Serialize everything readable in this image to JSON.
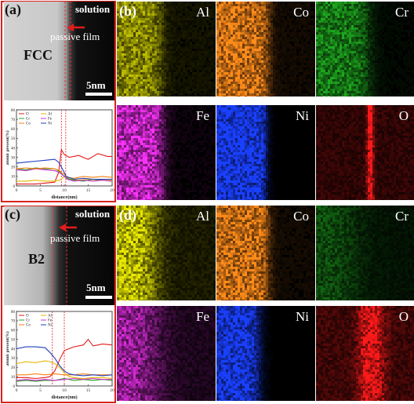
{
  "panel_a": {
    "label": "(a)",
    "solution": "solution",
    "passive_film": "passive film",
    "phase": "FCC",
    "scale_bar": "5nm",
    "chart_data": {
      "type": "line",
      "xlabel": "distance(nm)",
      "ylabel": "atomic precent(%)",
      "xlim": [
        0,
        20
      ],
      "ylim": [
        0,
        80
      ],
      "xticks": [
        0,
        5,
        10,
        15,
        20
      ],
      "yticks": [
        0,
        10,
        20,
        30,
        40,
        50,
        60,
        70,
        80
      ],
      "legend_position": "top-left",
      "markers": [
        9.4,
        10.3
      ],
      "series": [
        {
          "name": "O",
          "color": "#e41a1c",
          "x": [
            0,
            2,
            4,
            6,
            8,
            8.8,
            9.4,
            10,
            11,
            13,
            15,
            17,
            19,
            20
          ],
          "values": [
            2,
            2,
            2,
            3,
            4,
            14,
            38,
            33,
            30,
            32,
            28,
            34,
            31,
            31
          ]
        },
        {
          "name": "Al",
          "color": "#e6b800",
          "x": [
            0,
            2,
            4,
            6,
            8,
            9,
            9.6,
            10.2,
            11,
            13,
            15,
            17,
            19,
            20
          ],
          "values": [
            5,
            5,
            6,
            5,
            5,
            6,
            8,
            11,
            7,
            6,
            7,
            6,
            6,
            6
          ]
        },
        {
          "name": "Cr",
          "color": "#2ca02c",
          "x": [
            0,
            2,
            4,
            6,
            8,
            9,
            10,
            10.6,
            12,
            14,
            16,
            18,
            20
          ],
          "values": [
            18,
            17,
            19,
            18,
            18,
            15,
            10,
            8,
            6,
            5,
            7,
            6,
            5
          ]
        },
        {
          "name": "Fe",
          "color": "#cc33cc",
          "x": [
            0,
            2,
            4,
            6,
            8,
            9,
            10,
            10.6,
            12,
            14,
            16,
            18,
            20
          ],
          "values": [
            17,
            16,
            18,
            17,
            16,
            14,
            10,
            7,
            5,
            6,
            5,
            6,
            5
          ]
        },
        {
          "name": "Co",
          "color": "#ff7f0e",
          "x": [
            0,
            2,
            4,
            6,
            8,
            9,
            10,
            10.6,
            12,
            14,
            16,
            18,
            20
          ],
          "values": [
            18,
            19,
            18,
            19,
            18,
            16,
            12,
            9,
            8,
            10,
            9,
            10,
            9
          ]
        },
        {
          "name": "Ni",
          "color": "#1f3fbf",
          "x": [
            0,
            2,
            4,
            6,
            8,
            8.8,
            9.6,
            10.4,
            12,
            14,
            16,
            18,
            20
          ],
          "values": [
            24,
            25,
            26,
            27,
            28,
            25,
            18,
            10,
            7,
            8,
            7,
            7,
            7
          ]
        }
      ]
    }
  },
  "panel_c": {
    "label": "(c)",
    "solution": "solution",
    "passive_film": "passive film",
    "phase": "B2",
    "scale_bar": "5nm",
    "chart_data": {
      "type": "line",
      "xlabel": "distance(nm)",
      "ylabel": "atomic precent(%)",
      "xlim": [
        0,
        20
      ],
      "ylim": [
        0,
        80
      ],
      "xticks": [
        0,
        5,
        10,
        15,
        20
      ],
      "yticks": [
        0,
        10,
        20,
        30,
        40,
        50,
        60,
        70,
        80
      ],
      "legend_position": "top-left",
      "markers": [
        7.5,
        10.0
      ],
      "series": [
        {
          "name": "O",
          "color": "#e41a1c",
          "x": [
            0,
            2,
            4,
            6,
            7,
            8,
            9,
            10,
            11,
            12,
            14,
            15,
            16,
            18,
            20
          ],
          "values": [
            9,
            9,
            8,
            9,
            10,
            16,
            28,
            38,
            40,
            42,
            44,
            50,
            43,
            45,
            44
          ]
        },
        {
          "name": "Al",
          "color": "#e6b800",
          "x": [
            0,
            2,
            4,
            6,
            7,
            8,
            9,
            10,
            11,
            12,
            14,
            16,
            18,
            20
          ],
          "values": [
            24,
            26,
            25,
            27,
            26,
            24,
            20,
            14,
            10,
            9,
            8,
            9,
            9,
            8
          ]
        },
        {
          "name": "Cr",
          "color": "#2ca02c",
          "x": [
            0,
            2,
            4,
            6,
            8,
            10,
            12,
            14,
            16,
            18,
            20
          ],
          "values": [
            5,
            6,
            5,
            6,
            6,
            8,
            6,
            7,
            6,
            7,
            6
          ]
        },
        {
          "name": "Fe",
          "color": "#cc33cc",
          "x": [
            0,
            2,
            4,
            6,
            8,
            10,
            12,
            14,
            16,
            18,
            20
          ],
          "values": [
            6,
            7,
            6,
            7,
            6,
            7,
            8,
            7,
            8,
            7,
            7
          ]
        },
        {
          "name": "Co",
          "color": "#ff7f0e",
          "x": [
            0,
            2,
            4,
            6,
            8,
            10,
            12,
            14,
            16,
            18,
            20
          ],
          "values": [
            12,
            12,
            13,
            12,
            13,
            12,
            12,
            13,
            12,
            12,
            12
          ]
        },
        {
          "name": "Ni",
          "color": "#1f3fbf",
          "x": [
            0,
            2,
            4,
            6,
            7,
            8,
            9,
            10,
            11,
            12,
            14,
            16,
            18,
            20
          ],
          "values": [
            40,
            42,
            42,
            41,
            36,
            30,
            22,
            16,
            13,
            12,
            11,
            12,
            11,
            12
          ]
        }
      ]
    }
  },
  "panel_b": {
    "label": "(b)",
    "maps": [
      {
        "element": "Al",
        "color": "#e8e800"
      },
      {
        "element": "Co",
        "color": "#ff8c1a"
      },
      {
        "element": "Cr",
        "color": "#22c022"
      },
      {
        "element": "Fe",
        "color": "#ff33ff"
      },
      {
        "element": "Ni",
        "color": "#1a40ff"
      },
      {
        "element": "O",
        "color": "#ff1a1a"
      }
    ]
  },
  "panel_d": {
    "label": "(d)",
    "maps": [
      {
        "element": "Al",
        "color": "#e8e800"
      },
      {
        "element": "Co",
        "color": "#ff8c1a"
      },
      {
        "element": "Cr",
        "color": "#22c022"
      },
      {
        "element": "Fe",
        "color": "#ff33ff"
      },
      {
        "element": "Ni",
        "color": "#1a40ff"
      },
      {
        "element": "O",
        "color": "#ff1a1a"
      }
    ]
  }
}
